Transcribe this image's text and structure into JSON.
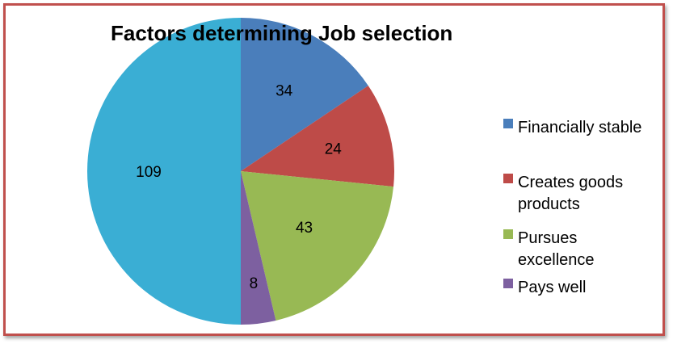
{
  "chart_data": {
    "type": "pie",
    "title": "Factors determining Job selection",
    "slices": [
      {
        "label": "Financially stable",
        "legend_lines": [
          "Financially stable"
        ],
        "value": 34,
        "color": "#4a7ebb"
      },
      {
        "label": "Creates goods products",
        "legend_lines": [
          "Creates goods",
          "products"
        ],
        "value": 24,
        "color": "#be4b48"
      },
      {
        "label": "Pursues excellence",
        "legend_lines": [
          "Pursues",
          "excellence"
        ],
        "value": 43,
        "color": "#98b954"
      },
      {
        "label": "Pays well",
        "legend_lines": [
          "Pays well"
        ],
        "value": 8,
        "color": "#7d60a0"
      },
      {
        "label": "",
        "legend_lines": [],
        "value": 109,
        "color": "#3aaed4"
      }
    ],
    "legend_position": "right"
  }
}
